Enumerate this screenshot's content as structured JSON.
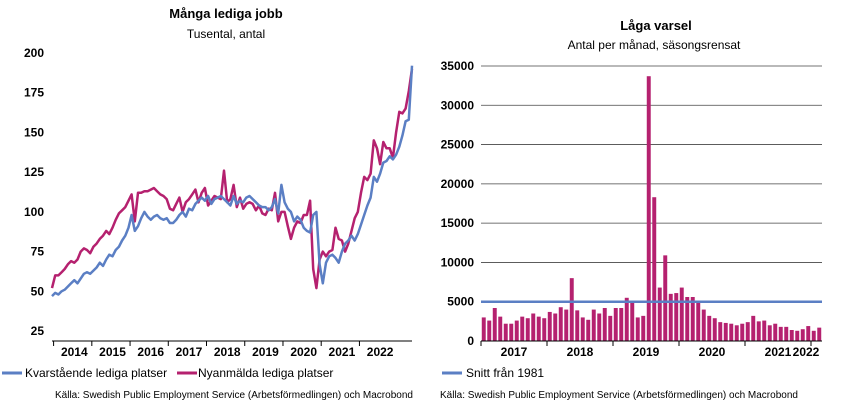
{
  "left": {
    "title": "Många lediga jobb",
    "subtitle": "Tusental, antal",
    "source": "Källa: Swedish Public Employment Service (Arbetsförmedlingen) och Macrobond",
    "colors": {
      "kvarstaende": "#5b7fc4",
      "nyanmalda": "#b5216f"
    }
  },
  "right": {
    "title": "Låga varsel",
    "subtitle": "Antal per månad, säsongsrensat",
    "source": "Källa: Swedish Public Employment Service (Arbetsförmedlingen) och Macrobond",
    "colors": {
      "bars": "#b5216f",
      "avg": "#5b7fc4"
    }
  },
  "chart_data": [
    {
      "type": "line",
      "title": "Många lediga jobb",
      "subtitle": "Tusental, antal",
      "x_start": "2013-12",
      "x_ticks": [
        "2014",
        "2015",
        "2016",
        "2017",
        "2018",
        "2019",
        "2020",
        "2021",
        "2022"
      ],
      "y_ticks": [
        25,
        50,
        75,
        100,
        125,
        150,
        175,
        200
      ],
      "ylim": [
        25,
        200
      ],
      "grid": false,
      "legend": "bottom",
      "series": [
        {
          "name": "Kvarstående lediga platser",
          "values": [
            47,
            49,
            48,
            50,
            51,
            53,
            55,
            57,
            55,
            58,
            61,
            62,
            61,
            63,
            65,
            68,
            66,
            70,
            73,
            72,
            76,
            78,
            82,
            85,
            90,
            98,
            88,
            91,
            96,
            100,
            97,
            95,
            97,
            98,
            96,
            95,
            96,
            93,
            93,
            95,
            98,
            100,
            97,
            102,
            101,
            105,
            107,
            109,
            107,
            110,
            105,
            108,
            109,
            110,
            108,
            106,
            104,
            110,
            105,
            107,
            106,
            109,
            110,
            108,
            106,
            104,
            103,
            103,
            101,
            103,
            108,
            99,
            117,
            106,
            102,
            100,
            94,
            97,
            95,
            90,
            88,
            87,
            98,
            100,
            67,
            55,
            68,
            72,
            73,
            71,
            68,
            75,
            80,
            82,
            85,
            82,
            86,
            92,
            98,
            104,
            109,
            122,
            119,
            124,
            131,
            132,
            135,
            133,
            136,
            141,
            148,
            157,
            158,
            192
          ]
        },
        {
          "name": "Nyanmälda lediga platser",
          "values": [
            52,
            60,
            60,
            62,
            64,
            67,
            69,
            68,
            70,
            75,
            77,
            76,
            74,
            78,
            80,
            83,
            85,
            88,
            86,
            90,
            95,
            99,
            101,
            103,
            107,
            111,
            94,
            112,
            112,
            113,
            113,
            114,
            115,
            113,
            111,
            110,
            108,
            102,
            101,
            105,
            109,
            100,
            106,
            108,
            111,
            114,
            106,
            112,
            115,
            104,
            107,
            110,
            109,
            108,
            126,
            106,
            108,
            117,
            103,
            109,
            102,
            105,
            106,
            105,
            101,
            104,
            99,
            98,
            102,
            101,
            112,
            94,
            100,
            100,
            91,
            83,
            90,
            94,
            93,
            98,
            98,
            107,
            64,
            52,
            70,
            75,
            72,
            75,
            76,
            90,
            83,
            82,
            75,
            80,
            88,
            96,
            100,
            112,
            122,
            120,
            124,
            145,
            140,
            130,
            144,
            140,
            140,
            134,
            150,
            163,
            162,
            165,
            176,
            190
          ]
        }
      ]
    },
    {
      "type": "bar",
      "title": "Låga varsel",
      "subtitle": "Antal per månad, säsongsrensat",
      "x_start": "2017-01",
      "x_ticks": [
        "2017",
        "2018",
        "2019",
        "2020",
        "2021",
        "2022"
      ],
      "y_ticks": [
        0,
        5000,
        10000,
        15000,
        20000,
        25000,
        30000,
        35000
      ],
      "ylim": [
        0,
        35000
      ],
      "grid": true,
      "legend": "bottom",
      "series": [
        {
          "name": "",
          "values": [
            3000,
            2600,
            4200,
            3100,
            2200,
            2200,
            2600,
            3100,
            2900,
            3500,
            3100,
            2900,
            3700,
            3500,
            4300,
            4000,
            8000,
            3900,
            3000,
            2700,
            4000,
            3500,
            4200,
            3200,
            4200,
            4200,
            5500,
            5100,
            3000,
            3200,
            33700,
            18300,
            6800,
            10900,
            6000,
            6100,
            6800,
            5600,
            5600,
            5000,
            4000,
            3200,
            2900,
            2400,
            2300,
            2200,
            2000,
            2200,
            2400,
            3200,
            2500,
            2600,
            2000,
            2200,
            1800,
            1800,
            1400,
            1300,
            1500,
            1900,
            1300,
            1700
          ]
        },
        {
          "name": "Snitt från 1981",
          "values": [
            5000
          ]
        }
      ]
    }
  ]
}
